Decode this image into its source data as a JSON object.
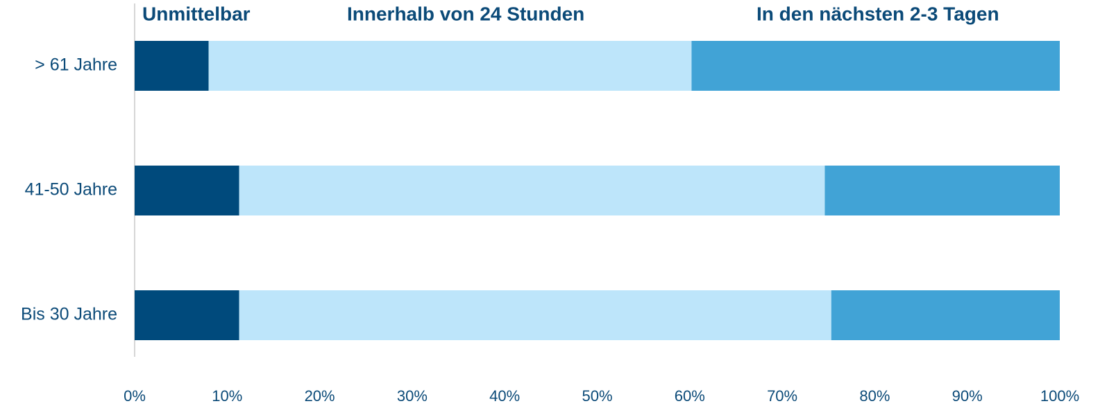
{
  "chart_data": {
    "type": "stacked-bar-horizontal",
    "categories": [
      "> 61 Jahre",
      "41-50 Jahre",
      "Bis 30 Jahre"
    ],
    "series": [
      {
        "name": "Unmittelbar",
        "color": "#004a7c",
        "values": [
          8,
          11.3,
          11.3
        ]
      },
      {
        "name": "Innerhalb von 24 Stunden",
        "color": "#bde5fa",
        "values": [
          52.2,
          63.3,
          64
        ]
      },
      {
        "name": "In den nächsten 2-3 Tagen",
        "color": "#41a3d6",
        "values": [
          39.8,
          25.4,
          24.7
        ]
      }
    ],
    "xlim": [
      0,
      100
    ],
    "xticks": [
      {
        "value": 0,
        "label": "0%"
      },
      {
        "value": 10,
        "label": "10%"
      },
      {
        "value": 20,
        "label": "20%"
      },
      {
        "value": 30,
        "label": "30%"
      },
      {
        "value": 40,
        "label": "40%"
      },
      {
        "value": 50,
        "label": "50%"
      },
      {
        "value": 60,
        "label": "60%"
      },
      {
        "value": 70,
        "label": "70%"
      },
      {
        "value": 80,
        "label": "80%"
      },
      {
        "value": 90,
        "label": "90%"
      },
      {
        "value": 100,
        "label": "100%"
      }
    ],
    "legend": "top"
  }
}
